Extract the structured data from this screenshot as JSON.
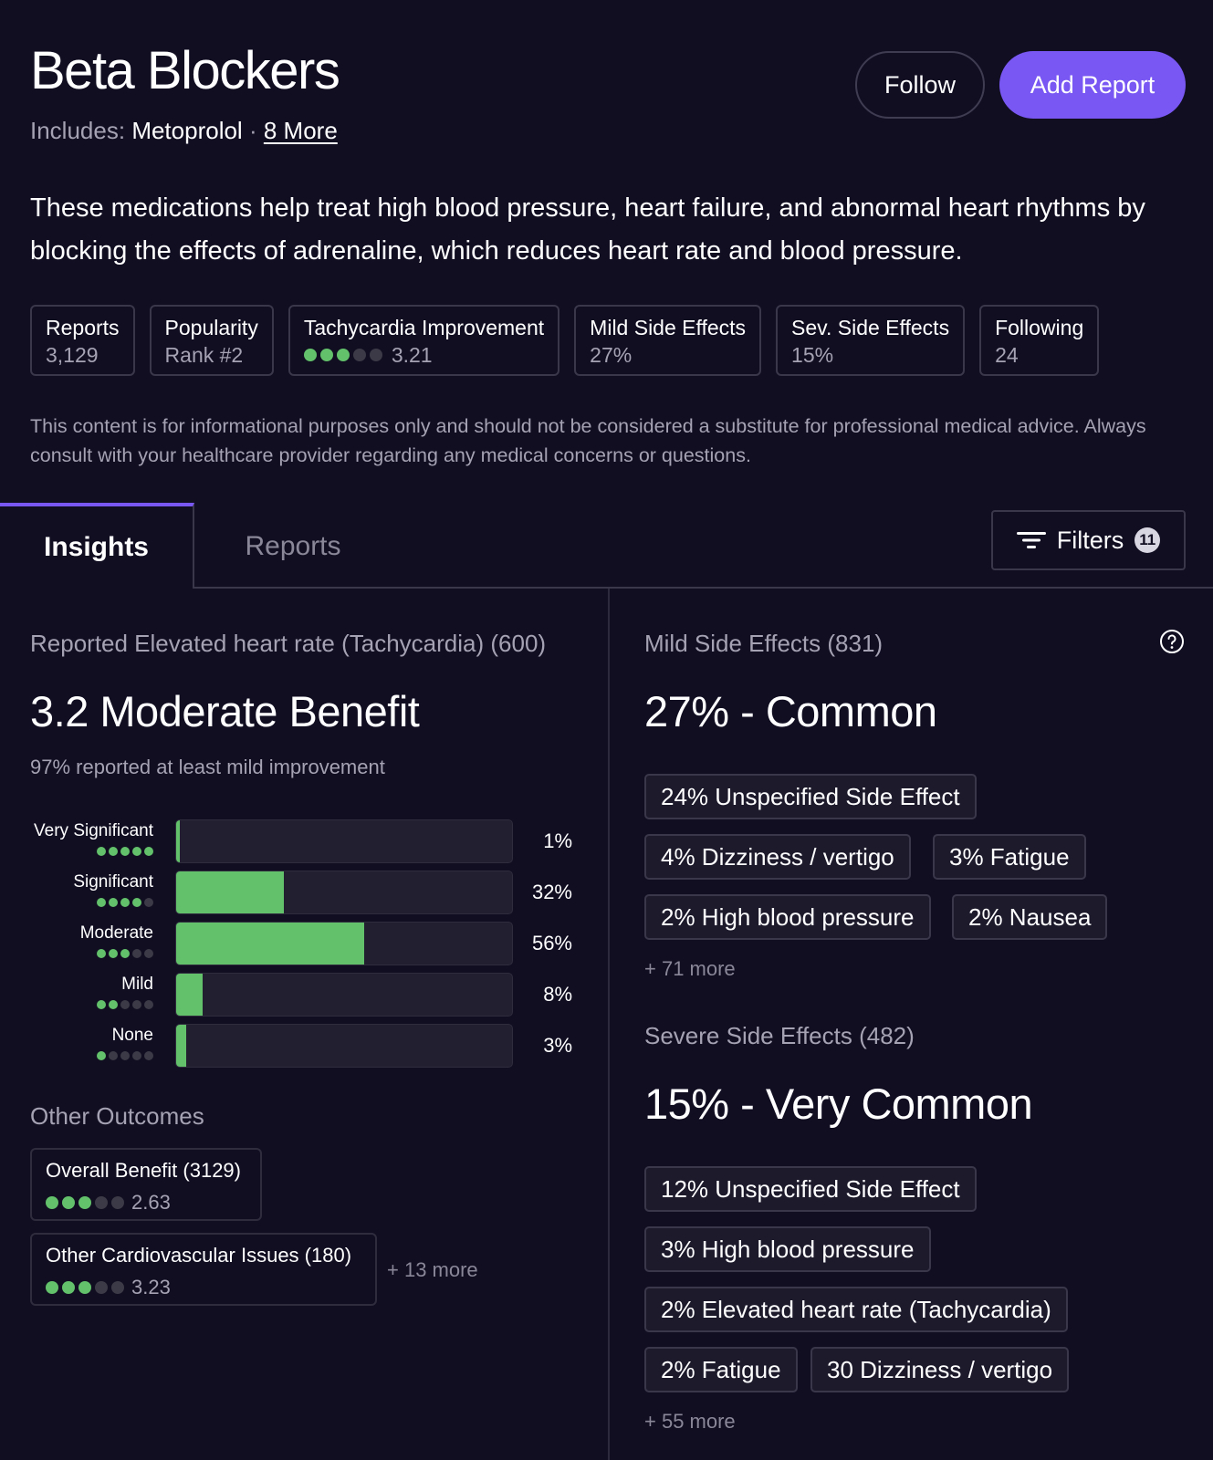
{
  "header": {
    "title": "Beta Blockers",
    "includes_label": "Includes:",
    "includes_drug": "Metoprolol",
    "separator": "·",
    "includes_more": "8 More",
    "follow_label": "Follow",
    "add_report_label": "Add Report"
  },
  "description": "These medications help treat high blood pressure, heart failure, and abnormal heart rhythms by blocking the effects of adrenaline, which reduces heart rate and blood pressure.",
  "stats": [
    {
      "label": "Reports",
      "value": "3,129"
    },
    {
      "label": "Popularity",
      "value": "Rank #2"
    },
    {
      "label": "Tachycardia Improvement",
      "value": "3.21",
      "rating": 3
    },
    {
      "label": "Mild Side Effects",
      "value": "27%"
    },
    {
      "label": "Sev. Side Effects",
      "value": "15%"
    },
    {
      "label": "Following",
      "value": "24"
    }
  ],
  "disclaimer": "This content is for informational purposes only and should not be considered a substitute for professional medical advice. Always consult with your healthcare provider regarding any medical concerns or questions.",
  "tabs": {
    "insights": "Insights",
    "reports": "Reports",
    "filters_label": "Filters",
    "filters_count": "11"
  },
  "benefit": {
    "heading": "Reported Elevated heart rate (Tachycardia) (600)",
    "score": "3.2 Moderate Benefit",
    "subtext": "97% reported at least mild improvement",
    "rows": [
      {
        "label": "Very Significant",
        "dots": 5,
        "percent": 1,
        "percent_label": "1%"
      },
      {
        "label": "Significant",
        "dots": 4,
        "percent": 32,
        "percent_label": "32%"
      },
      {
        "label": "Moderate",
        "dots": 3,
        "percent": 56,
        "percent_label": "56%"
      },
      {
        "label": "Mild",
        "dots": 2,
        "percent": 8,
        "percent_label": "8%"
      },
      {
        "label": "None",
        "dots": 1,
        "percent": 3,
        "percent_label": "3%"
      }
    ]
  },
  "other_outcomes": {
    "heading": "Other Outcomes",
    "items": [
      {
        "label": "Overall Benefit (3129)",
        "value": "2.63",
        "rating": 3
      },
      {
        "label": "Other Cardiovascular Issues (180)",
        "value": "3.23",
        "rating": 3
      }
    ],
    "more": "+ 13 more"
  },
  "mild": {
    "heading": "Mild Side Effects (831)",
    "summary": "27% - Common",
    "chips": [
      "24% Unspecified Side Effect",
      "4% Dizziness / vertigo",
      "3% Fatigue",
      "2% High blood pressure",
      "2% Nausea"
    ],
    "more": "+ 71 more"
  },
  "severe": {
    "heading": "Severe Side Effects (482)",
    "summary": "15% - Very Common",
    "chips": [
      "12% Unspecified Side Effect",
      "3% High blood pressure",
      "2% Elevated heart rate (Tachycardia)",
      "2% Fatigue",
      "30 Dizziness / vertigo"
    ],
    "more": "+ 55 more"
  },
  "colors": {
    "background": "#110e22",
    "accent": "#7857f3",
    "rating_green": "#62c16a"
  }
}
